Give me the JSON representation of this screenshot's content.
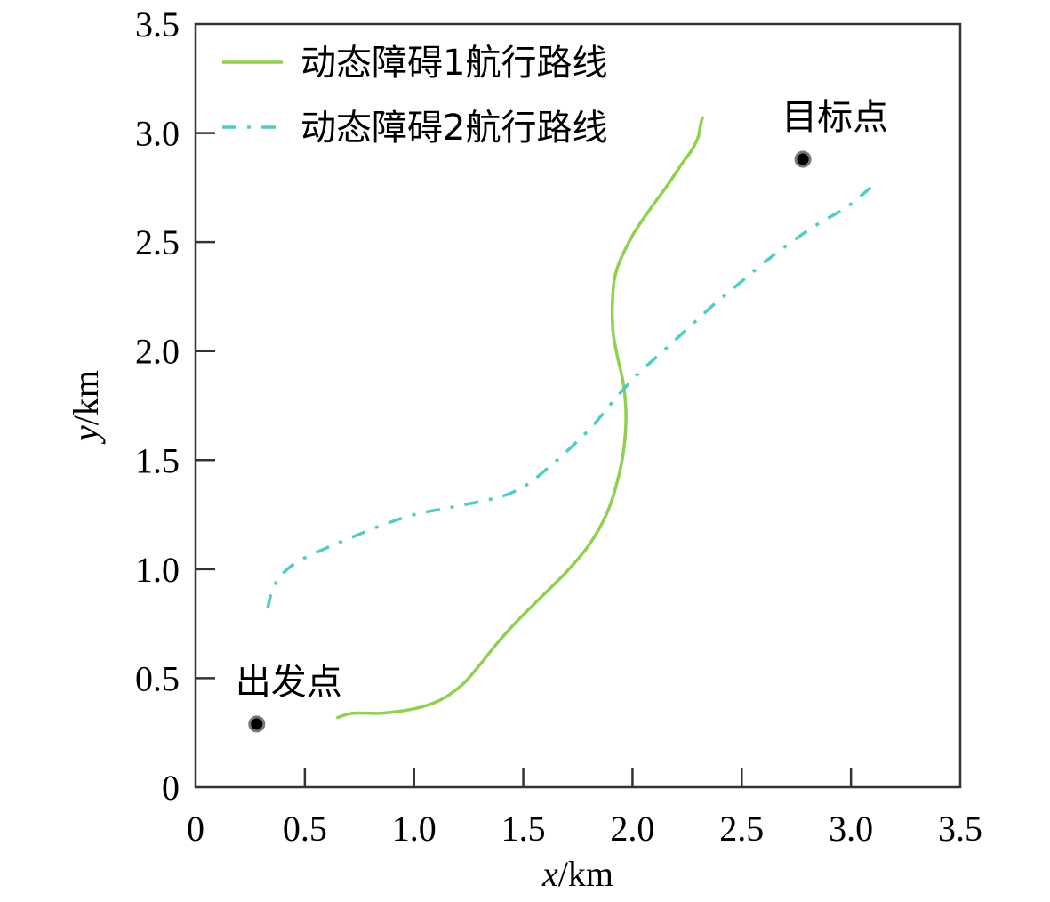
{
  "chart_data": {
    "type": "line",
    "xlabel": {
      "var": "x",
      "unit": "/km"
    },
    "ylabel": {
      "var": "y",
      "unit": "/km"
    },
    "xlim": [
      0,
      3.5
    ],
    "ylim": [
      0,
      3.5
    ],
    "xticks": [
      0,
      0.5,
      1.0,
      1.5,
      2.0,
      2.5,
      3.0,
      3.5
    ],
    "yticks": [
      0,
      0.5,
      1.0,
      1.5,
      2.0,
      2.5,
      3.0,
      3.5
    ],
    "xtick_labels": [
      "0",
      "0.5",
      "1.0",
      "1.5",
      "2.0",
      "2.5",
      "3.0",
      "3.5"
    ],
    "ytick_labels": [
      "0",
      "0.5",
      "1.0",
      "1.5",
      "2.0",
      "2.5",
      "3.0",
      "3.5"
    ],
    "grid": false,
    "legend_position": "top-left",
    "series": [
      {
        "name": "动态障碍1航行路线",
        "color": "#8fd14f",
        "style": "solid",
        "x": [
          0.65,
          0.72,
          0.85,
          1.0,
          1.12,
          1.22,
          1.3,
          1.38,
          1.47,
          1.58,
          1.7,
          1.8,
          1.88,
          1.93,
          1.96,
          1.97,
          1.96,
          1.93,
          1.91,
          1.91,
          1.93,
          2.0,
          2.08,
          2.16,
          2.22,
          2.27,
          2.3,
          2.31,
          2.32
        ],
        "y": [
          0.32,
          0.34,
          0.34,
          0.36,
          0.4,
          0.47,
          0.56,
          0.66,
          0.76,
          0.87,
          0.99,
          1.11,
          1.25,
          1.4,
          1.55,
          1.7,
          1.84,
          1.98,
          2.1,
          2.26,
          2.38,
          2.53,
          2.65,
          2.76,
          2.85,
          2.92,
          2.98,
          3.03,
          3.07
        ]
      },
      {
        "name": "动态障碍2航行路线",
        "color": "#4ecdc4",
        "style": "dash-dot",
        "x": [
          0.33,
          0.35,
          0.39,
          0.46,
          0.56,
          0.7,
          0.85,
          1.0,
          1.15,
          1.3,
          1.42,
          1.52,
          1.62,
          1.72,
          1.82,
          1.92,
          2.02,
          2.14,
          2.26,
          2.38,
          2.5,
          2.62,
          2.74,
          2.86,
          2.98,
          3.09
        ],
        "y": [
          0.82,
          0.9,
          0.97,
          1.03,
          1.08,
          1.14,
          1.2,
          1.25,
          1.28,
          1.31,
          1.34,
          1.39,
          1.47,
          1.56,
          1.66,
          1.78,
          1.89,
          2.0,
          2.11,
          2.22,
          2.32,
          2.42,
          2.51,
          2.59,
          2.66,
          2.75
        ]
      }
    ],
    "points": [
      {
        "label": "出发点",
        "x": 0.28,
        "y": 0.29,
        "label_position": "above"
      },
      {
        "label": "目标点",
        "x": 2.78,
        "y": 2.88,
        "label_position": "above"
      }
    ]
  }
}
